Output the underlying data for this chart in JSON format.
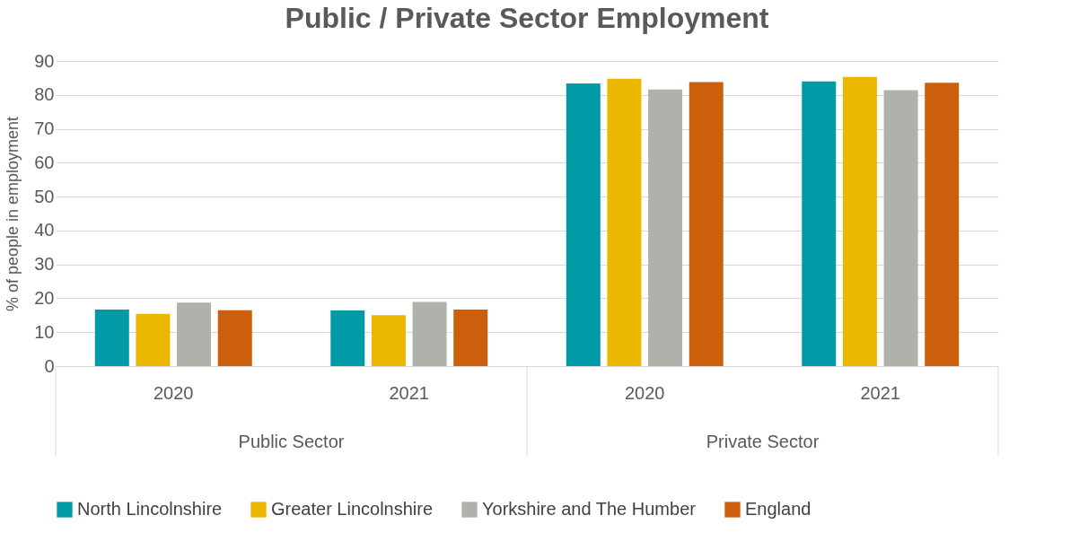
{
  "chart_data": {
    "type": "bar",
    "title": "Public / Private Sector Employment",
    "ylabel": "% of people in employment",
    "categories": [
      "2020",
      "2021",
      "2020",
      "2021"
    ],
    "annotations": [
      "Public Sector",
      "Private Sector"
    ],
    "series": [
      {
        "name": "North Lincolnshire",
        "color": "#009ba6",
        "values": [
          16.7,
          16.4,
          83.4,
          84.0
        ]
      },
      {
        "name": "Greater Lincolnshire",
        "color": "#ebb700",
        "values": [
          15.4,
          15.0,
          84.8,
          85.3
        ]
      },
      {
        "name": "Yorkshire and The Humber",
        "color": "#aeb2aa",
        "values": [
          18.7,
          18.9,
          81.6,
          81.4
        ]
      },
      {
        "name": "England",
        "color": "#cb5f0b",
        "values": [
          16.5,
          16.7,
          83.8,
          83.6
        ]
      }
    ],
    "ylim": [
      0,
      90
    ],
    "yticks": [
      0,
      10,
      20,
      30,
      40,
      50,
      60,
      70,
      80,
      90
    ],
    "grid": "y",
    "legend": "bottom"
  }
}
